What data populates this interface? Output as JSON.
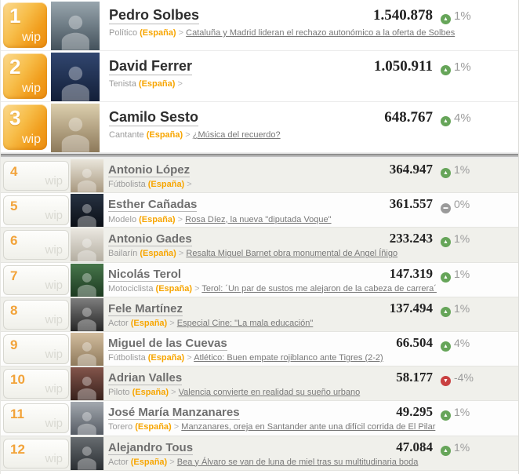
{
  "list": {
    "badge_label": "wip",
    "rows": [
      {
        "rank": "1",
        "tier": "top",
        "name": "Pedro Solbes",
        "profession": "Político",
        "country": "(España)",
        "separator": ">",
        "headline": "Cataluña y Madrid lideran el rechazo autonómico a la oferta de Solbes",
        "value": "1.540.878",
        "change": "1%",
        "trend": "up",
        "photo_top": "#98a5ad",
        "photo_bottom": "#44525c"
      },
      {
        "rank": "2",
        "tier": "top",
        "name": "David Ferrer",
        "profession": "Tenista",
        "country": "(España)",
        "separator": ">",
        "headline": "",
        "value": "1.050.911",
        "change": "1%",
        "trend": "up",
        "photo_top": "#31466f",
        "photo_bottom": "#131f38"
      },
      {
        "rank": "3",
        "tier": "top",
        "name": "Camilo Sesto",
        "profession": "Cantante",
        "country": "(España)",
        "separator": ">",
        "headline": "¿Música del recuerdo?",
        "value": "648.767",
        "change": "4%",
        "trend": "up",
        "photo_top": "#dccfae",
        "photo_bottom": "#8d795a"
      },
      {
        "rank": "4",
        "tier": "std",
        "name": "Antonio López",
        "profession": "Fútbolista",
        "country": "(España)",
        "separator": ">",
        "headline": "",
        "value": "364.947",
        "change": "1%",
        "trend": "up",
        "photo_top": "#e9e5da",
        "photo_bottom": "#a8987f"
      },
      {
        "rank": "5",
        "tier": "std",
        "name": "Esther Cañadas",
        "profession": "Modelo",
        "country": "(España)",
        "separator": ">",
        "headline": "Rosa Díez, la nueva \"diputada Voque\"",
        "value": "361.557",
        "change": "0%",
        "trend": "flat",
        "photo_top": "#273242",
        "photo_bottom": "#0b0f16"
      },
      {
        "rank": "6",
        "tier": "std",
        "name": "Antonio Gades",
        "profession": "Bailarín",
        "country": "(España)",
        "separator": ">",
        "headline": "Resalta Miguel Barnet obra monumental de Angel Íñigo",
        "value": "233.243",
        "change": "1%",
        "trend": "up",
        "photo_top": "#eae7e0",
        "photo_bottom": "#b4aea1"
      },
      {
        "rank": "7",
        "tier": "std",
        "name": "Nicolás Terol",
        "profession": "Motociclista",
        "country": "(España)",
        "separator": ">",
        "headline": "Terol: ´Un par de sustos me alejaron de la cabeza de carrera´",
        "value": "147.319",
        "change": "1%",
        "trend": "up",
        "photo_top": "#46764a",
        "photo_bottom": "#1d3a21"
      },
      {
        "rank": "8",
        "tier": "std",
        "name": "Fele Martínez",
        "profession": "Actor",
        "country": "(España)",
        "separator": ">",
        "headline": "Especial Cine: \"La mala educación\"",
        "value": "137.494",
        "change": "1%",
        "trend": "up",
        "photo_top": "#7d7d7d",
        "photo_bottom": "#262626"
      },
      {
        "rank": "9",
        "tier": "std",
        "name": "Miguel de las Cuevas",
        "profession": "Fútbolista",
        "country": "(España)",
        "separator": ">",
        "headline": "Atlético: Buen empate rojiblanco ante Tigres (2-2)",
        "value": "66.504",
        "change": "4%",
        "trend": "up",
        "photo_top": "#d2bd9e",
        "photo_bottom": "#8f7a5c"
      },
      {
        "rank": "10",
        "tier": "std",
        "name": "Adrian Valles",
        "profession": "Piloto",
        "country": "(España)",
        "separator": ">",
        "headline": "Valencia convierte en realidad su sueño urbano",
        "value": "58.177",
        "change": "-4%",
        "trend": "down",
        "photo_top": "#83554b",
        "photo_bottom": "#38211c"
      },
      {
        "rank": "11",
        "tier": "std",
        "name": "José María Manzanares",
        "profession": "Torero",
        "country": "(España)",
        "separator": ">",
        "headline": "Manzanares, oreja en Santander ante una difícil corrida de El Pilar",
        "value": "49.295",
        "change": "1%",
        "trend": "up",
        "photo_top": "#a3a8af",
        "photo_bottom": "#565c64"
      },
      {
        "rank": "12",
        "tier": "std",
        "name": "Alejandro Tous",
        "profession": "Actor",
        "country": "(España)",
        "separator": ">",
        "headline": "Bea y Álvaro se van de luna de miel tras su multitudinaria boda",
        "value": "47.084",
        "change": "1%",
        "trend": "up",
        "photo_top": "#676c70",
        "photo_bottom": "#2b2f33"
      }
    ]
  },
  "colors": {
    "trend_up": "#66a559",
    "trend_down": "#c94040",
    "trend_flat": "#9a9a9a",
    "country_accent": "#f7a500",
    "badge_orange_top": "#fbda90",
    "badge_orange_bottom": "#ec8d11"
  }
}
